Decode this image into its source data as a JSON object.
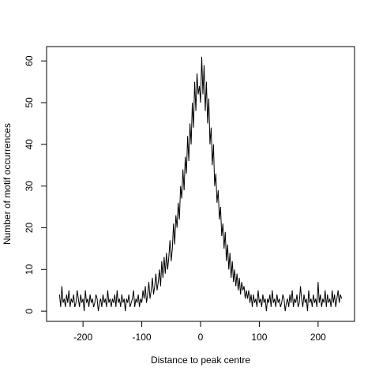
{
  "chart_data": {
    "type": "line",
    "xlabel": "Distance to peak centre",
    "ylabel": "Number of motif occurrences",
    "color": "#000000",
    "xlim": [
      -262,
      262
    ],
    "ylim": [
      -2.44,
      63.44
    ],
    "xticks": [
      -200,
      -100,
      0,
      100,
      200
    ],
    "yticks": [
      0,
      10,
      20,
      30,
      40,
      50,
      60
    ],
    "x": [
      -240,
      -238,
      -236,
      -234,
      -232,
      -230,
      -228,
      -226,
      -224,
      -222,
      -220,
      -218,
      -216,
      -214,
      -212,
      -210,
      -208,
      -206,
      -204,
      -202,
      -200,
      -198,
      -196,
      -194,
      -192,
      -190,
      -188,
      -186,
      -184,
      -182,
      -180,
      -178,
      -176,
      -174,
      -172,
      -170,
      -168,
      -166,
      -164,
      -162,
      -160,
      -158,
      -156,
      -154,
      -152,
      -150,
      -148,
      -146,
      -144,
      -142,
      -140,
      -138,
      -136,
      -134,
      -132,
      -130,
      -128,
      -126,
      -124,
      -122,
      -120,
      -118,
      -116,
      -114,
      -112,
      -110,
      -108,
      -106,
      -104,
      -102,
      -100,
      -98,
      -96,
      -94,
      -92,
      -90,
      -88,
      -86,
      -84,
      -82,
      -80,
      -78,
      -76,
      -74,
      -72,
      -70,
      -68,
      -66,
      -64,
      -62,
      -60,
      -58,
      -56,
      -54,
      -52,
      -50,
      -48,
      -46,
      -44,
      -42,
      -40,
      -38,
      -36,
      -34,
      -32,
      -30,
      -28,
      -26,
      -24,
      -22,
      -20,
      -18,
      -16,
      -14,
      -12,
      -10,
      -8,
      -6,
      -4,
      -2,
      0,
      2,
      4,
      6,
      8,
      10,
      12,
      14,
      16,
      18,
      20,
      22,
      24,
      26,
      28,
      30,
      32,
      34,
      36,
      38,
      40,
      42,
      44,
      46,
      48,
      50,
      52,
      54,
      56,
      58,
      60,
      62,
      64,
      66,
      68,
      70,
      72,
      74,
      76,
      78,
      80,
      82,
      84,
      86,
      88,
      90,
      92,
      94,
      96,
      98,
      100,
      102,
      104,
      106,
      108,
      110,
      112,
      114,
      116,
      118,
      120,
      122,
      124,
      126,
      128,
      130,
      132,
      134,
      136,
      138,
      140,
      142,
      144,
      146,
      148,
      150,
      152,
      154,
      156,
      158,
      160,
      162,
      164,
      166,
      168,
      170,
      172,
      174,
      176,
      178,
      180,
      182,
      184,
      186,
      188,
      190,
      192,
      194,
      196,
      198,
      200,
      202,
      204,
      206,
      208,
      210,
      212,
      214,
      216,
      218,
      220,
      222,
      224,
      226,
      228,
      230,
      232,
      234,
      236,
      238,
      240
    ],
    "values": [
      4,
      1,
      6,
      2,
      3,
      1,
      4,
      2,
      5,
      1,
      3,
      2,
      4,
      1,
      2,
      5,
      3,
      1,
      4,
      2,
      3,
      0,
      5,
      2,
      3,
      1,
      4,
      2,
      3,
      1,
      2,
      4,
      3,
      0,
      2,
      3,
      1,
      4,
      2,
      3,
      1,
      5,
      2,
      3,
      1,
      3,
      2,
      4,
      1,
      5,
      2,
      3,
      1,
      4,
      2,
      3,
      0,
      3,
      2,
      4,
      1,
      2,
      3,
      5,
      1,
      3,
      2,
      4,
      1,
      3,
      2,
      5,
      3,
      6,
      2,
      4,
      7,
      3,
      5,
      8,
      4,
      6,
      9,
      5,
      7,
      10,
      6,
      12,
      8,
      13,
      9,
      14,
      10,
      13,
      17,
      12,
      15,
      21,
      16,
      23,
      20,
      26,
      22,
      30,
      27,
      34,
      29,
      37,
      33,
      42,
      36,
      45,
      40,
      50,
      44,
      55,
      48,
      57,
      52,
      54,
      50,
      61,
      52,
      59,
      48,
      55,
      45,
      51,
      40,
      44,
      35,
      40,
      30,
      33,
      26,
      29,
      22,
      25,
      18,
      21,
      15,
      19,
      12,
      16,
      10,
      14,
      8,
      12,
      7,
      10,
      6,
      9,
      5,
      8,
      4,
      7,
      5,
      6,
      3,
      5,
      3,
      5,
      2,
      4,
      1,
      4,
      2,
      3,
      1,
      5,
      2,
      3,
      1,
      4,
      2,
      3,
      0,
      3,
      2,
      4,
      1,
      5,
      2,
      3,
      1,
      4,
      2,
      3,
      1,
      2,
      4,
      3,
      0,
      2,
      3,
      1,
      4,
      2,
      5,
      1,
      3,
      2,
      4,
      1,
      2,
      6,
      3,
      1,
      4,
      2,
      3,
      0,
      5,
      2,
      3,
      1,
      4,
      2,
      3,
      1,
      7,
      2,
      4,
      1,
      3,
      2,
      5,
      1,
      4,
      2,
      3,
      1,
      5,
      2,
      4,
      1,
      3,
      5,
      2,
      4,
      3
    ]
  }
}
